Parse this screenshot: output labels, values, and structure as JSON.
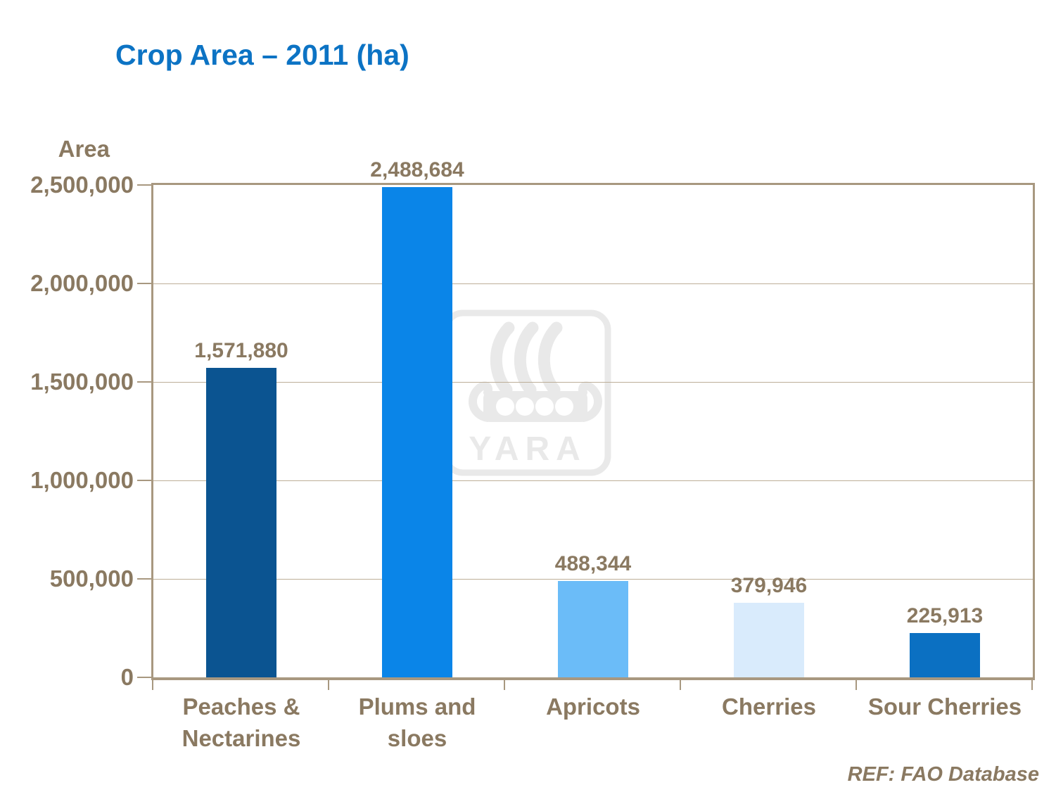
{
  "title": "Crop Area – 2011 (ha)",
  "footer": {
    "ref": "REF: FAO Database"
  },
  "watermark": {
    "text": "YARA",
    "name": "yara-viking-ship-logo",
    "color": "#e9e9e9"
  },
  "colors": {
    "title_text": "#0c73c4",
    "axis_text": "#8a7961",
    "plot_border": "#a89880",
    "gridline": "#bdae98",
    "background": "#ffffff"
  },
  "chart_data": {
    "type": "bar",
    "title": "Crop Area – 2011 (ha)",
    "ylabel": "Area",
    "xlabel": "",
    "categories": [
      "Peaches & Nectarines",
      "Plums and sloes",
      "Apricots",
      "Cherries",
      "Sour Cherries"
    ],
    "categories_display": [
      "Peaches &\nNectarines",
      "Plums and\nsloes",
      "Apricots",
      "Cherries",
      "Sour Cherries"
    ],
    "values": [
      1571880,
      2488684,
      488344,
      379946,
      225913
    ],
    "value_labels": [
      "1,571,880",
      "2,488,684",
      "488,344",
      "379,946",
      "225,913"
    ],
    "bar_colors": [
      "#0b5491",
      "#0a85e8",
      "#6bbcf8",
      "#d9ebfc",
      "#0b70c2"
    ],
    "ylim": [
      0,
      2500000
    ],
    "yticks": [
      2500000,
      2000000,
      1500000,
      1000000,
      500000,
      0
    ],
    "ytick_labels": [
      "2,500,000",
      "2,000,000",
      "1,500,000",
      "1,000,000",
      "500,000",
      "0"
    ],
    "grid": true,
    "legend": false,
    "source": "REF: FAO Database"
  }
}
